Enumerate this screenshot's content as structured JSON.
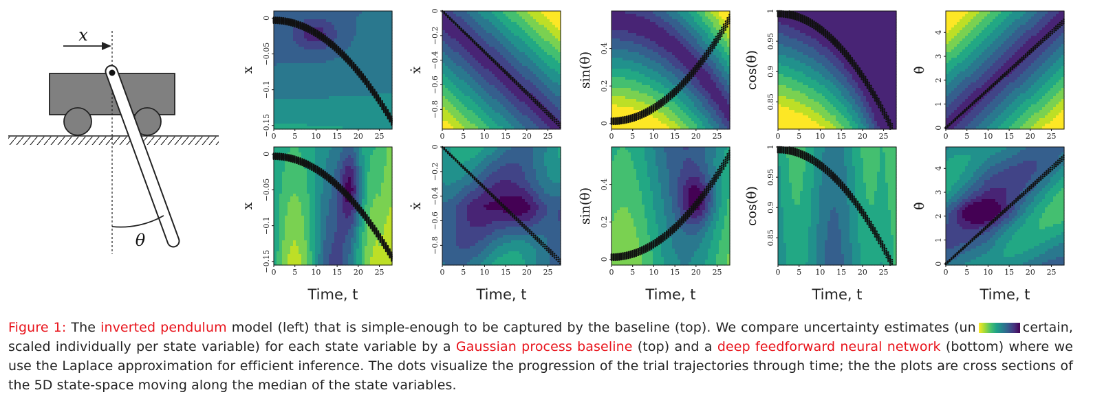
{
  "pendulum": {
    "x_label": "x",
    "theta_label": "θ"
  },
  "colormap": [
    "#440154",
    "#482475",
    "#414487",
    "#355f8d",
    "#2a788e",
    "#21918c",
    "#22a884",
    "#44bf70",
    "#7ad151",
    "#bddf26",
    "#fde725"
  ],
  "chart_data": [
    {
      "id": "top-x",
      "type": "heatmap",
      "row": "top",
      "ylabel": "x",
      "xlabel": "Time, t",
      "xlim": [
        0,
        28
      ],
      "ylim": [
        -0.155,
        0.01
      ],
      "xticks": [
        "0",
        "5",
        "10",
        "15",
        "20",
        "25"
      ],
      "yticks": [
        "0",
        "−0.05",
        "−0.1",
        "−0.15"
      ],
      "ytick_values": [
        0,
        -0.05,
        -0.1,
        -0.15
      ]
    },
    {
      "id": "top-xdot",
      "type": "heatmap",
      "row": "top",
      "ylabel": "ẋ",
      "xlabel": "Time, t",
      "xlim": [
        0,
        28
      ],
      "ylim": [
        -0.96,
        0.0
      ],
      "xticks": [
        "0",
        "5",
        "10",
        "15",
        "20",
        "25"
      ],
      "yticks": [
        "0",
        "−0.2",
        "−0.4",
        "−0.6",
        "−0.8"
      ],
      "ytick_values": [
        0,
        -0.2,
        -0.4,
        -0.6,
        -0.8
      ]
    },
    {
      "id": "top-sin",
      "type": "heatmap",
      "row": "top",
      "ylabel": "sin(θ)",
      "xlabel": "Time, t",
      "xlim": [
        0,
        28
      ],
      "ylim": [
        -0.03,
        0.6
      ],
      "xticks": [
        "0",
        "5",
        "10",
        "15",
        "20",
        "25"
      ],
      "yticks": [
        "0",
        "0.2",
        "0.4"
      ],
      "ytick_values": [
        0,
        0.2,
        0.4
      ]
    },
    {
      "id": "top-cos",
      "type": "heatmap",
      "row": "top",
      "ylabel": "cos(θ)",
      "xlabel": "Time, t",
      "xlim": [
        0,
        28
      ],
      "ylim": [
        0.805,
        1.0
      ],
      "xticks": [
        "0",
        "5",
        "10",
        "15",
        "20",
        "25"
      ],
      "yticks": [
        "1",
        "0.95",
        "0.9",
        "0.85"
      ],
      "ytick_values": [
        1,
        0.95,
        0.9,
        0.85
      ]
    },
    {
      "id": "top-thetadot",
      "type": "heatmap",
      "row": "top",
      "ylabel": "θ̇",
      "xlabel": "Time, t",
      "xlim": [
        0,
        28
      ],
      "ylim": [
        -0.05,
        4.9
      ],
      "xticks": [
        "0",
        "5",
        "10",
        "15",
        "20",
        "25"
      ],
      "yticks": [
        "4",
        "3",
        "2",
        "1",
        "0"
      ],
      "ytick_values": [
        4,
        3,
        2,
        1,
        0
      ]
    },
    {
      "id": "bottom-x",
      "type": "heatmap",
      "row": "bottom",
      "ylabel": "x",
      "xlabel": "Time, t",
      "xlim": [
        0,
        28
      ],
      "ylim": [
        -0.155,
        0.01
      ],
      "xticks": [
        "0",
        "5",
        "10",
        "15",
        "20",
        "25"
      ],
      "yticks": [
        "0",
        "−0.05",
        "−0.1",
        "−0.15"
      ],
      "ytick_values": [
        0,
        -0.05,
        -0.1,
        -0.15
      ]
    },
    {
      "id": "bottom-xdot",
      "type": "heatmap",
      "row": "bottom",
      "ylabel": "ẋ",
      "xlabel": "Time, t",
      "xlim": [
        0,
        28
      ],
      "ylim": [
        -0.96,
        0.0
      ],
      "xticks": [
        "0",
        "5",
        "10",
        "15",
        "20",
        "25"
      ],
      "yticks": [
        "0",
        "−0.2",
        "−0.4",
        "−0.6",
        "−0.8"
      ],
      "ytick_values": [
        0,
        -0.2,
        -0.4,
        -0.6,
        -0.8
      ]
    },
    {
      "id": "bottom-sin",
      "type": "heatmap",
      "row": "bottom",
      "ylabel": "sin(θ)",
      "xlabel": "Time, t",
      "xlim": [
        0,
        28
      ],
      "ylim": [
        -0.03,
        0.6
      ],
      "xticks": [
        "0",
        "5",
        "10",
        "15",
        "20",
        "25"
      ],
      "yticks": [
        "0",
        "0.2",
        "0.4"
      ],
      "ytick_values": [
        0,
        0.2,
        0.4
      ]
    },
    {
      "id": "bottom-cos",
      "type": "heatmap",
      "row": "bottom",
      "ylabel": "cos(θ)",
      "xlabel": "Time, t",
      "xlim": [
        0,
        28
      ],
      "ylim": [
        0.805,
        1.0
      ],
      "xticks": [
        "0",
        "5",
        "10",
        "15",
        "20",
        "25"
      ],
      "yticks": [
        "1",
        "0.95",
        "0.9",
        "0.85"
      ],
      "ytick_values": [
        1,
        0.95,
        0.9,
        0.85
      ]
    },
    {
      "id": "bottom-thetadot",
      "type": "heatmap",
      "row": "bottom",
      "ylabel": "θ̇",
      "xlabel": "Time, t",
      "xlim": [
        0,
        28
      ],
      "ylim": [
        -0.05,
        4.9
      ],
      "xticks": [
        "0",
        "5",
        "10",
        "15",
        "20",
        "25"
      ],
      "yticks": [
        "4",
        "3",
        "2",
        "1",
        "0"
      ],
      "ytick_values": [
        4,
        3,
        2,
        1,
        0
      ]
    }
  ],
  "caption": {
    "figure_label": "Figure 1:",
    "t1": " The ",
    "link1": "inverted pendulum",
    "t2": " model (left) that is simple-enough to be captured by the baseline (top).  We compare uncertainty estimates (un",
    "t3": "certain, scaled individually per state variable) for each state variable by a ",
    "link2": "Gaussian process baseline",
    "t4": " (top) and a ",
    "link3": "deep feedforward neural network",
    "t5": " (bottom) where we use the Laplace approximation for efficient inference.  The dots visualize the progression of the trial trajectories through time; the the plots are cross sections of the 5D state-space moving along the median of the state variables."
  }
}
